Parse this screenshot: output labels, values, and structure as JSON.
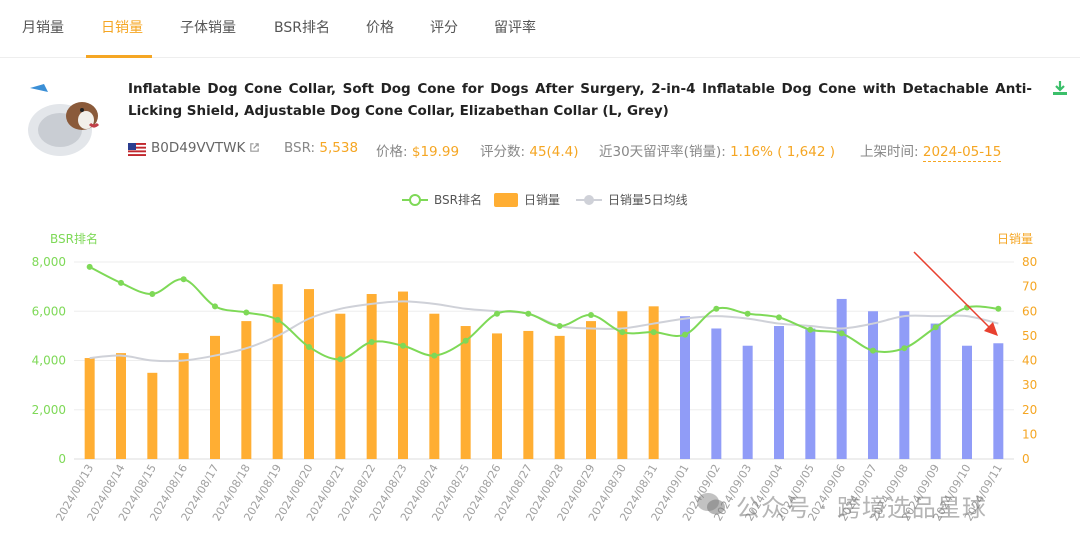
{
  "tabs": [
    {
      "label": "月销量",
      "active": false
    },
    {
      "label": "日销量",
      "active": true
    },
    {
      "label": "子体销量",
      "active": false
    },
    {
      "label": "BSR排名",
      "active": false
    },
    {
      "label": "价格",
      "active": false
    },
    {
      "label": "评分",
      "active": false
    },
    {
      "label": "留评率",
      "active": false
    }
  ],
  "product": {
    "title": "Inflatable Dog Cone Collar, Soft Dog Cone for Dogs After Surgery, 2-in-4 Inflatable Dog Cone with Detachable Anti-Licking Shield, Adjustable Dog Cone Collar, Elizabethan Collar (L, Grey)",
    "asin": "B0D49VVTWK",
    "bsr_label": "BSR:",
    "bsr_value": "5,538",
    "price_label": "价格:",
    "price_value": "$19.99",
    "rating_label": "评分数:",
    "rating_value": "45(4.4)",
    "review_rate_label": "近30天留评率(销量):",
    "review_rate_value": "1.16% ( 1,642 )",
    "listed_label": "上架时间:",
    "listed_value": "2024-05-15"
  },
  "colors": {
    "accent": "#f5a623",
    "bsr_line": "#7ed957",
    "bar_orange": "#ffae33",
    "bar_blue": "#909cf7",
    "ma_line": "#cfd1d8",
    "arrow": "#e8402f"
  },
  "icons": [
    "download-icon",
    "us-flag-icon",
    "external-link-icon",
    "wechat-logo-icon"
  ],
  "watermark": "公众号 · 跨境选品星球",
  "chart_data": {
    "type": "bar",
    "legend": {
      "position": "top-center",
      "items": [
        "BSR排名",
        "日销量",
        "日销量5日均线"
      ]
    },
    "left_axis_label": "BSR排名",
    "right_axis_label": "日销量",
    "left_ticks": [
      "0",
      "2,000",
      "4,000",
      "6,000",
      "8,000"
    ],
    "right_ticks": [
      "0",
      "10",
      "20",
      "30",
      "40",
      "50",
      "60",
      "70",
      "80"
    ],
    "ylim_left": [
      0,
      8000
    ],
    "ylim_right": [
      0,
      80
    ],
    "grid": true,
    "categories": [
      "2024/08/13",
      "2024/08/14",
      "2024/08/15",
      "2024/08/16",
      "2024/08/17",
      "2024/08/18",
      "2024/08/19",
      "2024/08/20",
      "2024/08/21",
      "2024/08/22",
      "2024/08/23",
      "2024/08/24",
      "2024/08/25",
      "2024/08/26",
      "2024/08/27",
      "2024/08/28",
      "2024/08/29",
      "2024/08/30",
      "2024/08/31",
      "2024/09/01",
      "2024/09/02",
      "2024/09/03",
      "2024/09/04",
      "2024/09/05",
      "2024/09/06",
      "2024/09/07",
      "2024/09/08",
      "2024/09/09",
      "2024/09/10",
      "2024/09/11"
    ],
    "series": [
      {
        "name": "日销量",
        "type": "bar",
        "axis": "right",
        "values": [
          41,
          43,
          35,
          43,
          50,
          56,
          71,
          69,
          59,
          67,
          68,
          59,
          54,
          51,
          52,
          50,
          56,
          60,
          62,
          58,
          53,
          46,
          54,
          53,
          65,
          60,
          60,
          55,
          46,
          47
        ]
      },
      {
        "name": "BSR排名",
        "type": "line",
        "axis": "left",
        "values": [
          7800,
          7150,
          6700,
          7300,
          6200,
          5950,
          5650,
          4550,
          4050,
          4750,
          4600,
          4200,
          4800,
          5900,
          5900,
          5400,
          5850,
          5150,
          5150,
          5050,
          6100,
          5900,
          5750,
          5250,
          5100,
          4400,
          4500,
          5350,
          6150,
          6100
        ]
      },
      {
        "name": "日销量5日均线",
        "type": "line",
        "axis": "right",
        "values": [
          41,
          42,
          40,
          40,
          42,
          45,
          50,
          57,
          61,
          63,
          64,
          63,
          61,
          60,
          59,
          54,
          53,
          53,
          55,
          57,
          58,
          57,
          55,
          54,
          53,
          55,
          58,
          58,
          58,
          55
        ]
      }
    ],
    "bar_colors": {
      "orange_range": [
        0,
        18
      ],
      "blue_range": [
        19,
        29
      ]
    }
  }
}
